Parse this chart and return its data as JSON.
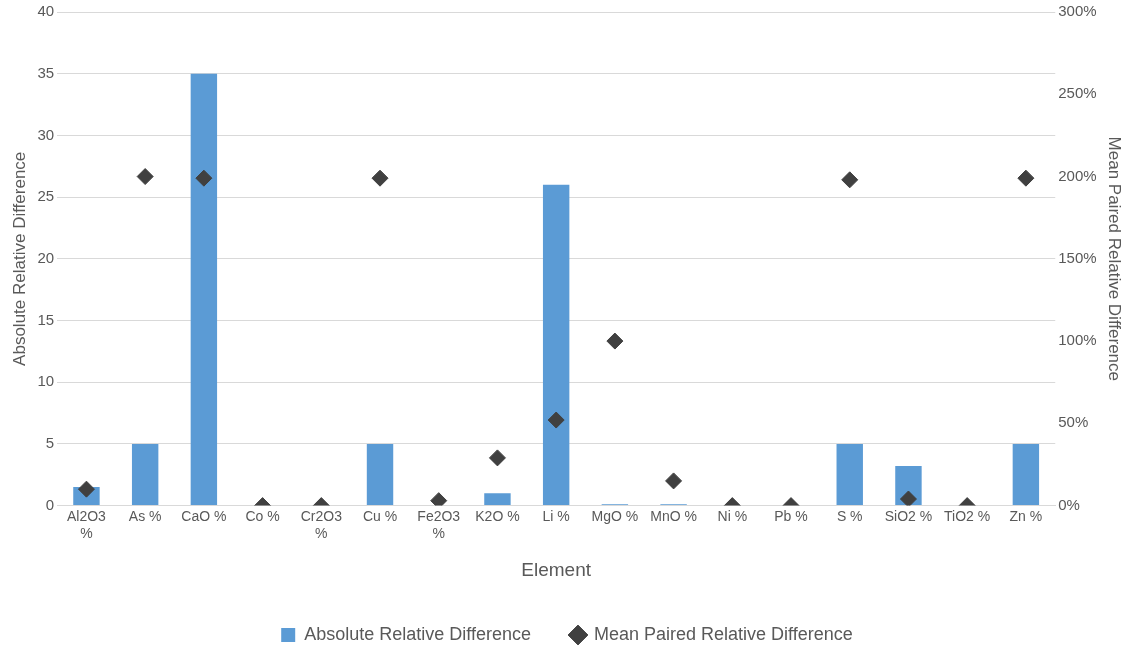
{
  "chart_data": {
    "type": "bar",
    "xlabel": "Element",
    "ylabel": "Absolute Relative Difference",
    "y2label": "Mean Paired Relative Difference",
    "categories": [
      "Al2O3 %",
      "As %",
      "CaO %",
      "Co %",
      "Cr2O3 %",
      "Cu %",
      "Fe2O3 %",
      "K2O %",
      "Li %",
      "MgO %",
      "MnO %",
      "Ni %",
      "Pb %",
      "S %",
      "SiO2 %",
      "TiO2 %",
      "Zn %"
    ],
    "series": [
      {
        "name": "Absolute Relative Difference",
        "color": "#5b9bd5",
        "values": [
          1.5,
          5,
          35,
          0,
          0,
          5,
          0,
          1,
          26,
          0.1,
          0.1,
          0,
          0,
          5,
          3.2,
          0,
          5
        ]
      },
      {
        "name": "Mean Paired Relative Difference",
        "type": "scatter",
        "axis": "y2",
        "color": "#404040",
        "values": [
          10,
          200,
          199,
          0,
          0,
          199,
          3,
          29,
          52,
          100,
          15,
          0,
          0,
          198,
          4,
          0,
          199
        ]
      }
    ],
    "ylim": [
      0,
      40
    ],
    "yticks": [
      0,
      5,
      10,
      15,
      20,
      25,
      30,
      35,
      40
    ],
    "y2lim": [
      0,
      300
    ],
    "y2ticks": [
      {
        "value": 0,
        "label": "0%"
      },
      {
        "value": 50,
        "label": "50%"
      },
      {
        "value": 100,
        "label": "100%"
      },
      {
        "value": 150,
        "label": "150%"
      },
      {
        "value": 200,
        "label": "200%"
      },
      {
        "value": 250,
        "label": "250%"
      },
      {
        "value": 300,
        "label": "300%"
      }
    ],
    "grid": "y",
    "legend": "bottom",
    "marker": "diamond"
  }
}
